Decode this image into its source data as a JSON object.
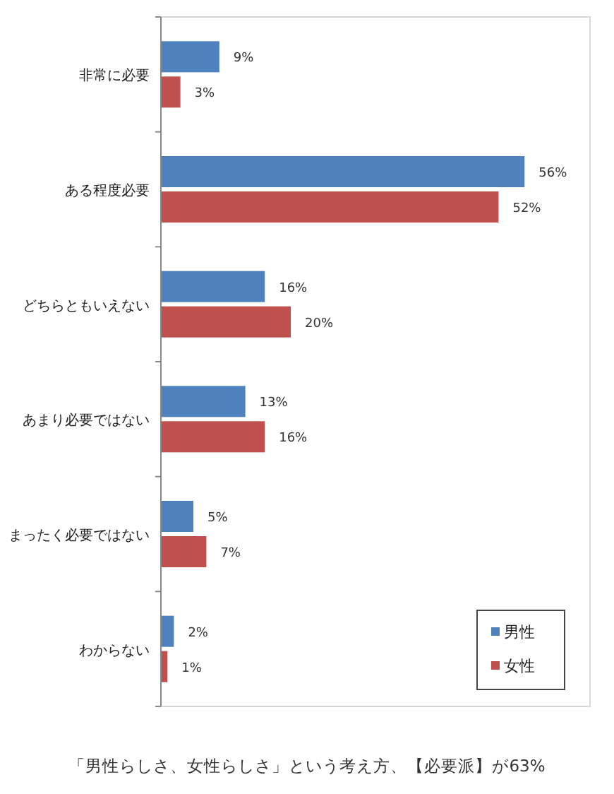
{
  "chart_data": {
    "type": "bar",
    "orientation": "horizontal",
    "categories": [
      "非常に必要",
      "ある程度必要",
      "どちらともいえない",
      "あまり必要ではない",
      "まったく必要ではない",
      "わからない"
    ],
    "series": [
      {
        "name": "男性",
        "color": "#4f81bd",
        "values": [
          9,
          56,
          16,
          13,
          5,
          2
        ],
        "value_labels": [
          "9%",
          "56%",
          "16%",
          "13%",
          "5%",
          "2%"
        ]
      },
      {
        "name": "女性",
        "color": "#c0504d",
        "values": [
          3,
          52,
          20,
          16,
          7,
          1
        ],
        "value_labels": [
          "3%",
          "52%",
          "20%",
          "16%",
          "7%",
          "1%"
        ]
      }
    ],
    "legend": "bottom right",
    "annotations": [
      "「男性らしさ、女性らしさ」という考え方、【必要派】が63%"
    ]
  }
}
